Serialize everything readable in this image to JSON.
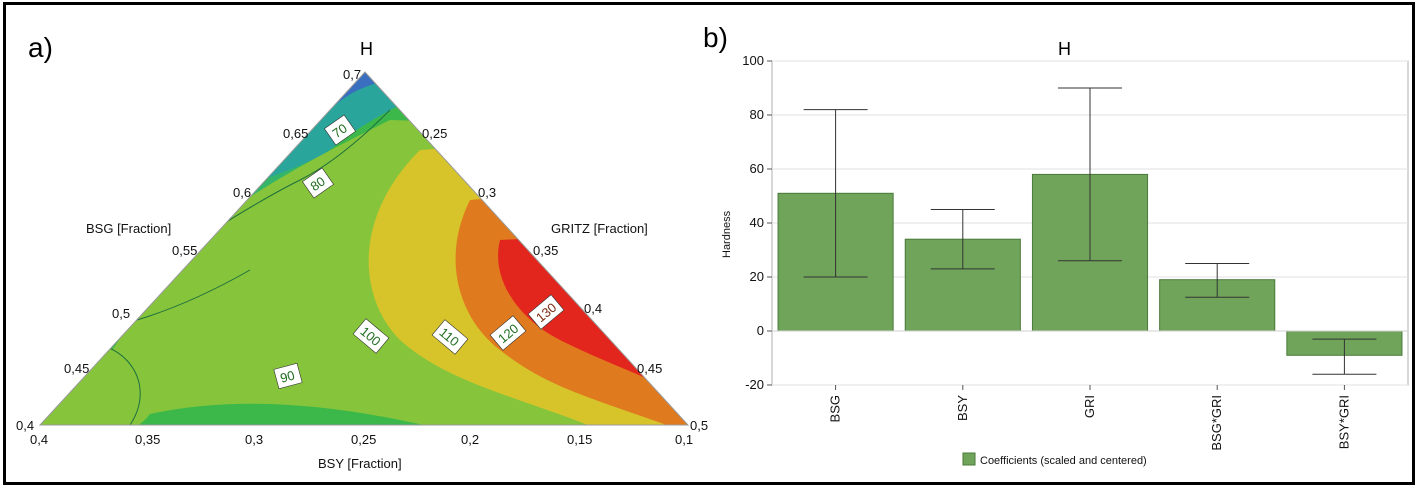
{
  "panel_a": {
    "label": "a)",
    "title": "H",
    "axes": {
      "bsg": {
        "label": "BSG [Fraction]",
        "ticks": [
          "0,4",
          "0,45",
          "0,5",
          "0,55",
          "0,6",
          "0,65",
          "0,7"
        ]
      },
      "gritz": {
        "label": "GRITZ [Fraction]",
        "ticks": [
          "0,25",
          "0,3",
          "0,35",
          "0,4",
          "0,45",
          "0,5"
        ]
      },
      "bsy": {
        "label": "BSY [Fraction]",
        "ticks": [
          "0,4",
          "0,35",
          "0,3",
          "0,25",
          "0,2",
          "0,15",
          "0,1"
        ]
      }
    },
    "contour_labels": [
      "70",
      "80",
      "90",
      "100",
      "110",
      "120",
      "130"
    ],
    "colors": {
      "lt70": "#3a6fbf",
      "70_80": "#2aa59b",
      "80_90": "#34b56a",
      "90_100": "#3cb84a",
      "100_110": "#86c53b",
      "110_120": "#d6c42a",
      "120_130": "#e07a1f",
      "gt130": "#e3261d"
    }
  },
  "panel_b": {
    "label": "b)",
    "bar_color": "#6fa45a",
    "chart_data": {
      "type": "bar",
      "title": "H",
      "ylabel": "Hardness",
      "xlabel": "",
      "categories": [
        "BSG",
        "BSY",
        "GRI",
        "BSG*GRI",
        "BSY*GRI"
      ],
      "values": [
        51,
        34,
        58,
        19,
        -9
      ],
      "error_low": [
        20,
        23,
        26,
        12.5,
        -16
      ],
      "error_high": [
        82,
        45,
        90,
        25,
        -3
      ],
      "ylim": [
        -20,
        100
      ],
      "yticks": [
        "-20",
        "0",
        "20",
        "40",
        "60",
        "80",
        "100"
      ],
      "grid": true,
      "legend": {
        "position": "bottom",
        "entries": [
          "Coefficients (scaled and centered)"
        ]
      }
    }
  }
}
